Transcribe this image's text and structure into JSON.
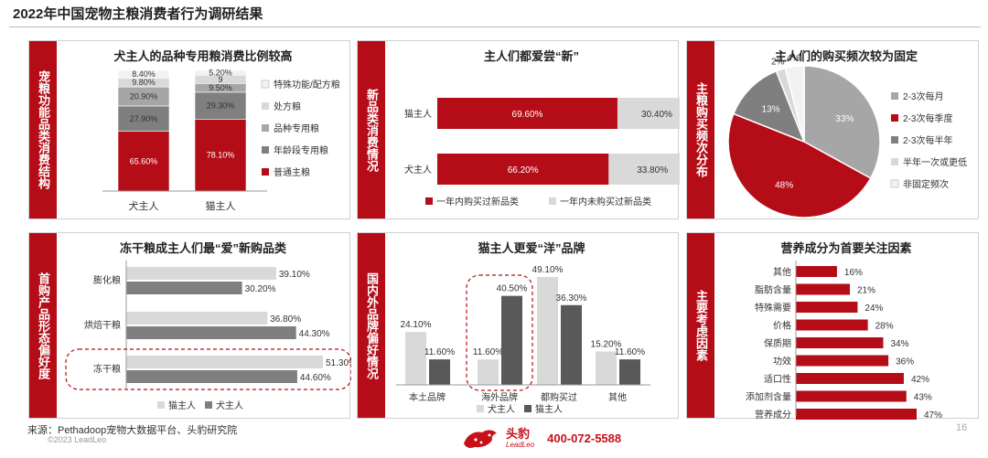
{
  "page": {
    "title": "2022年中国宠物主粮消费者行为调研结果",
    "source": "来源：Pethadoop宠物大数据平台、头豹研究院",
    "copyright": "©2023 LeadLeo",
    "brand_name": "头豹",
    "brand_sub": "LeadLeo",
    "phone": "400-072-5588",
    "page_number": "16"
  },
  "colors": {
    "accent_red": "#b50d17",
    "bar_red": "#b50d17",
    "light_gray": "#d9d9d9",
    "mid_gray": "#a6a6a6",
    "dark_gray": "#7f7f7f",
    "deep_gray": "#595959",
    "highlight_dash": "#b50d17"
  },
  "chart_data": [
    {
      "id": "function-share",
      "sidebar": "宠粮功能品类消费结构",
      "title": "犬主人的品种专用粮消费比例较高",
      "type": "bar",
      "stacked": true,
      "categories": [
        "犬主人",
        "猫主人"
      ],
      "series": [
        {
          "name": "普通主粮",
          "values": [
            65.6,
            78.1
          ],
          "labels": [
            "65.60%",
            "78.10%"
          ],
          "color": "#b50d17"
        },
        {
          "name": "年龄段专用粮",
          "values": [
            27.9,
            29.3
          ],
          "labels": [
            "27.90%",
            "29.30%"
          ],
          "color": "#7f7f7f"
        },
        {
          "name": "品种专用粮",
          "values": [
            20.9,
            9.5
          ],
          "labels": [
            "20.90%",
            "9.50%"
          ],
          "color": "#a6a6a6"
        },
        {
          "name": "处方粮",
          "values": [
            9.8,
            9
          ],
          "labels": [
            "9.80%",
            "9"
          ],
          "color": "#d9d9d9"
        },
        {
          "name": "特殊功能/配方粮",
          "values": [
            8.4,
            5.2
          ],
          "labels": [
            "8.40%",
            "5.20%"
          ],
          "color": "#f2f2f2"
        }
      ],
      "legend_order": [
        "特殊功能/配方粮",
        "处方粮",
        "品种专用粮",
        "年龄段专用粮",
        "普通主粮"
      ],
      "legend": "right"
    },
    {
      "id": "new-product",
      "sidebar": "新品类消费情况",
      "title": "主人们都爱尝“新”",
      "type": "bar",
      "orientation": "horizontal",
      "stacked": true,
      "categories": [
        "猫主人",
        "犬主人"
      ],
      "series": [
        {
          "name": "一年内购买过新品类",
          "values": [
            69.6,
            66.2
          ],
          "labels": [
            "69.60%",
            "66.20%"
          ],
          "color": "#b50d17"
        },
        {
          "name": "一年内未购买过新品类",
          "values": [
            30.4,
            33.8
          ],
          "labels": [
            "30.40%",
            "33.80%"
          ],
          "color": "#d9d9d9"
        }
      ],
      "legend": "bottom"
    },
    {
      "id": "purchase-frequency",
      "sidebar": "主粮购买频次分布",
      "title": "主人们的购买频次较为固定",
      "type": "pie",
      "slices": [
        {
          "name": "2-3次每月",
          "value": 33,
          "label": "33%",
          "color": "#a6a6a6"
        },
        {
          "name": "2-3次每季度",
          "value": 48,
          "label": "48%",
          "color": "#b50d17"
        },
        {
          "name": "2-3次每半年",
          "value": 13,
          "label": "13%",
          "color": "#7f7f7f"
        },
        {
          "name": "半年一次或更低",
          "value": 2,
          "label": "2%",
          "color": "#d9d9d9"
        },
        {
          "name": "非固定频次",
          "value": 4,
          "label": "4%",
          "color": "#f2f2f2"
        }
      ],
      "legend": "right"
    },
    {
      "id": "first-purchase-form",
      "sidebar": "首购产品形态偏好度",
      "title": "冻干粮成主人们最“爱”新购品类",
      "type": "bar",
      "orientation": "horizontal",
      "categories": [
        "膨化粮",
        "烘焙干粮",
        "冻干粮"
      ],
      "series": [
        {
          "name": "猫主人",
          "values": [
            39.1,
            36.8,
            51.3
          ],
          "labels": [
            "39.10%",
            "36.80%",
            "51.30%"
          ],
          "color": "#d9d9d9"
        },
        {
          "name": "犬主人",
          "values": [
            30.2,
            44.3,
            44.6
          ],
          "labels": [
            "30.20%",
            "44.30%",
            "44.60%"
          ],
          "color": "#7f7f7f"
        }
      ],
      "highlight": "冻干粮",
      "legend": "bottom"
    },
    {
      "id": "brand-origin",
      "sidebar": "国内外品牌偏好情况",
      "title": "猫主人更爱“洋”品牌",
      "type": "bar",
      "categories": [
        "本土品牌",
        "海外品牌",
        "都购买过",
        "其他"
      ],
      "series": [
        {
          "name": "犬主人",
          "values": [
            24.1,
            11.6,
            49.1,
            15.2
          ],
          "labels": [
            "24.10%",
            "11.60%",
            "49.10%",
            "15.20%"
          ],
          "color": "#d9d9d9"
        },
        {
          "name": "猫主人",
          "values": [
            11.6,
            40.5,
            36.3,
            11.6
          ],
          "labels": [
            "11.60%",
            "40.50%",
            "36.30%",
            "11.60%"
          ],
          "color": "#595959"
        }
      ],
      "highlight": "海外品牌",
      "legend": "bottom"
    },
    {
      "id": "key-factors",
      "sidebar": "主要考虑因素",
      "title": "营养成分为首要关注因素",
      "type": "bar",
      "orientation": "horizontal",
      "categories": [
        "其他",
        "脂肪含量",
        "特殊需要",
        "价格",
        "保质期",
        "功效",
        "适口性",
        "添加剂含量",
        "营养成分"
      ],
      "series": [
        {
          "name": "",
          "values": [
            16,
            21,
            24,
            28,
            34,
            36,
            42,
            43,
            47
          ],
          "labels": [
            "16%",
            "21%",
            "24%",
            "28%",
            "34%",
            "36%",
            "42%",
            "43%",
            "47%"
          ],
          "color": "#b50d17"
        }
      ]
    }
  ]
}
